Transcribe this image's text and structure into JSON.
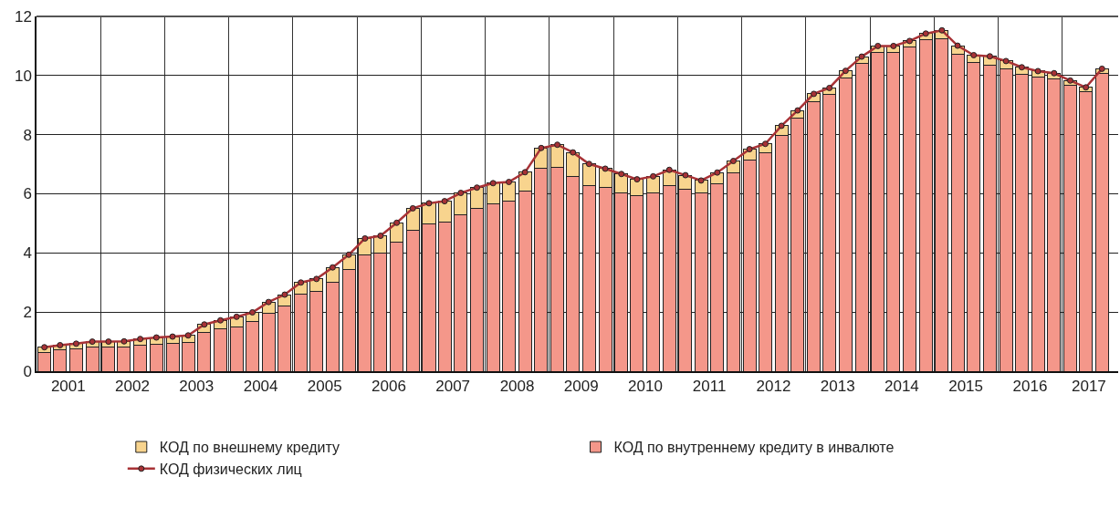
{
  "chart_data": {
    "type": "bar",
    "stacked": true,
    "x": [
      "2001-02-15",
      "2001-05-15",
      "2001-08-15",
      "2001-11-15",
      "2002-02-15",
      "2002-05-15",
      "2002-08-15",
      "2002-11-15",
      "2003-02-15",
      "2003-05-15",
      "2003-08-15",
      "2003-11-15",
      "2004-02-15",
      "2004-05-15",
      "2004-08-15",
      "2004-11-15",
      "2005-02-15",
      "2005-05-15",
      "2005-08-15",
      "2005-11-15",
      "2006-02-15",
      "2006-05-15",
      "2006-08-15",
      "2006-11-15",
      "2007-02-15",
      "2007-05-15",
      "2007-08-15",
      "2007-11-15",
      "2008-02-15",
      "2008-05-15",
      "2008-08-15",
      "2008-11-15",
      "2009-02-15",
      "2009-05-15",
      "2009-08-15",
      "2009-11-15",
      "2010-02-15",
      "2010-05-15",
      "2010-08-15",
      "2010-11-15",
      "2011-02-15",
      "2011-05-15",
      "2011-08-15",
      "2011-11-15",
      "2012-02-15",
      "2012-05-15",
      "2012-08-15",
      "2012-11-15",
      "2013-02-15",
      "2013-05-15",
      "2013-08-15",
      "2013-11-15",
      "2014-02-15",
      "2014-05-15",
      "2014-08-15",
      "2014-11-15",
      "2015-02-15",
      "2015-05-15",
      "2015-08-15",
      "2015-11-15",
      "2016-02-15",
      "2016-05-15",
      "2016-08-15",
      "2016-11-15",
      "2017-02-15",
      "2017-05-15",
      "2017-08-15"
    ],
    "series": [
      {
        "name": "КОД по внутреннему кредиту в инвалюте",
        "color": "#f4978a",
        "values": [
          0.64,
          0.72,
          0.77,
          0.82,
          0.83,
          0.83,
          0.89,
          0.92,
          0.94,
          0.98,
          1.32,
          1.43,
          1.51,
          1.67,
          1.95,
          2.2,
          2.6,
          2.69,
          3.02,
          3.44,
          3.93,
          4.0,
          4.38,
          4.78,
          4.99,
          5.04,
          5.29,
          5.52,
          5.66,
          5.76,
          6.1,
          6.86,
          6.91,
          6.58,
          6.29,
          6.21,
          6.04,
          5.95,
          6.04,
          6.29,
          6.16,
          6.04,
          6.35,
          6.71,
          7.14,
          7.38,
          7.98,
          8.56,
          9.13,
          9.35,
          9.92,
          10.4,
          10.78,
          10.79,
          10.97,
          11.2,
          11.23,
          10.73,
          10.43,
          10.36,
          10.23,
          10.03,
          9.95,
          9.89,
          9.66,
          9.44,
          10.07
        ]
      },
      {
        "name": "КОД по внешнему кредиту",
        "color": "#f8d48e",
        "values": [
          0.17,
          0.16,
          0.16,
          0.18,
          0.17,
          0.18,
          0.2,
          0.22,
          0.23,
          0.23,
          0.26,
          0.29,
          0.33,
          0.32,
          0.39,
          0.39,
          0.4,
          0.43,
          0.49,
          0.5,
          0.56,
          0.58,
          0.64,
          0.73,
          0.69,
          0.71,
          0.74,
          0.69,
          0.7,
          0.64,
          0.63,
          0.69,
          0.75,
          0.82,
          0.72,
          0.64,
          0.63,
          0.54,
          0.55,
          0.52,
          0.47,
          0.41,
          0.37,
          0.4,
          0.37,
          0.31,
          0.32,
          0.26,
          0.25,
          0.23,
          0.24,
          0.24,
          0.22,
          0.21,
          0.2,
          0.22,
          0.3,
          0.28,
          0.26,
          0.29,
          0.26,
          0.25,
          0.2,
          0.19,
          0.17,
          0.16,
          0.16
        ]
      },
      {
        "name": "КОД физических лиц",
        "type": "line",
        "color": "#a83236",
        "values": [
          0.81,
          0.88,
          0.93,
          1.0,
          1.0,
          1.01,
          1.09,
          1.14,
          1.17,
          1.21,
          1.58,
          1.72,
          1.84,
          1.99,
          2.34,
          2.59,
          3.0,
          3.12,
          3.51,
          3.94,
          4.49,
          4.58,
          5.02,
          5.51,
          5.68,
          5.75,
          6.03,
          6.21,
          6.36,
          6.4,
          6.73,
          7.55,
          7.66,
          7.4,
          7.01,
          6.85,
          6.67,
          6.49,
          6.59,
          6.81,
          6.63,
          6.45,
          6.72,
          7.11,
          7.51,
          7.69,
          8.3,
          8.82,
          9.38,
          9.58,
          10.16,
          10.64,
          11.0,
          11.0,
          11.17,
          11.42,
          11.53,
          11.01,
          10.69,
          10.65,
          10.49,
          10.28,
          10.15,
          10.08,
          9.83,
          9.6,
          10.23
        ]
      }
    ],
    "marker": "circle",
    "xlim": [
      "2001-01-01",
      "2017-11-15"
    ],
    "xticks": [
      {
        "value": "2001-07-01",
        "label": "2001"
      },
      {
        "value": "2002-07-01",
        "label": "2002"
      },
      {
        "value": "2003-07-01",
        "label": "2003"
      },
      {
        "value": "2004-07-01",
        "label": "2004"
      },
      {
        "value": "2005-07-01",
        "label": "2005"
      },
      {
        "value": "2006-07-01",
        "label": "2006"
      },
      {
        "value": "2007-07-01",
        "label": "2007"
      },
      {
        "value": "2008-07-01",
        "label": "2008"
      },
      {
        "value": "2009-07-01",
        "label": "2009"
      },
      {
        "value": "2010-07-01",
        "label": "2010"
      },
      {
        "value": "2011-07-01",
        "label": "2011"
      },
      {
        "value": "2012-07-01",
        "label": "2012"
      },
      {
        "value": "2013-07-01",
        "label": "2013"
      },
      {
        "value": "2014-07-01",
        "label": "2014"
      },
      {
        "value": "2015-07-01",
        "label": "2015"
      },
      {
        "value": "2016-07-01",
        "label": "2016"
      },
      {
        "value": "2017-06-01",
        "label": "2017"
      }
    ],
    "ylim": [
      0,
      12
    ],
    "yticks": [
      0,
      2,
      4,
      6,
      8,
      10,
      12
    ],
    "grid": true,
    "legend": "bottom"
  }
}
